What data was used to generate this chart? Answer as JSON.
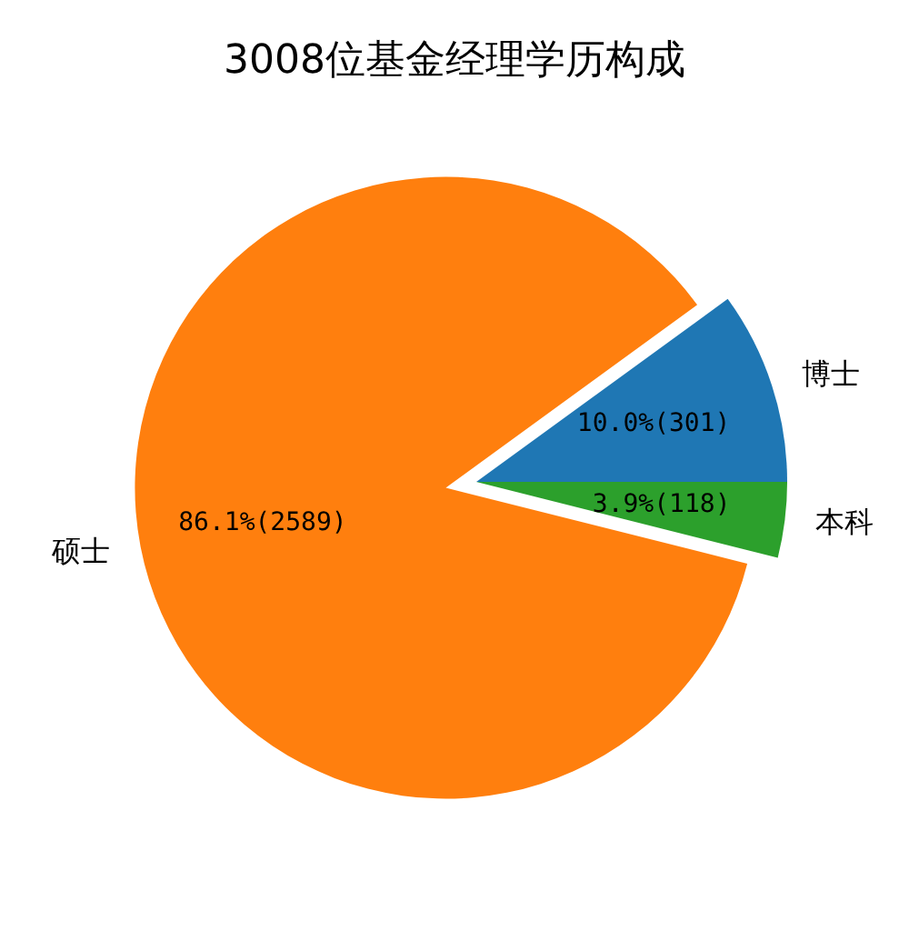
{
  "chart_data": {
    "type": "pie",
    "title": "3008位基金经理学历构成",
    "categories": [
      "博士",
      "硕士",
      "本科"
    ],
    "values": [
      301,
      2589,
      118
    ],
    "colors": [
      "#1f77b4",
      "#ff7f0e",
      "#2ca02c"
    ],
    "value_labels": [
      "10.0%(301)",
      "86.1%(2589)",
      "3.9%(118)"
    ],
    "legend": false
  }
}
